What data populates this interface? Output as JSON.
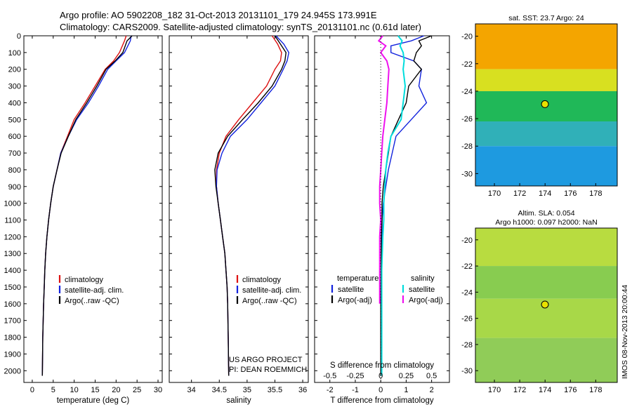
{
  "header": {
    "line1": "Argo profile: AO 5902208_182 31-Oct-2013 20131101_179 24.945S 173.991E",
    "line2": "Climatology: CARS2009. Satellite-adjusted climatology: synTS_20131101.nc (0.61d later)"
  },
  "colors": {
    "climatology": "#dd1111",
    "satellite": "#1122dd",
    "argo": "#000000",
    "salinity_satellite": "#00dddd",
    "salinity_argo": "#ee11ee"
  },
  "chart_data": [
    {
      "id": "temperature",
      "type": "line",
      "xlabel": "temperature (deg C)",
      "ylabel": "",
      "xlim": [
        -2,
        31
      ],
      "ylim": [
        2070,
        0
      ],
      "xticks": [
        "0",
        "5",
        "10",
        "15",
        "20",
        "25",
        "30"
      ],
      "xtick_values": [
        0,
        5,
        10,
        15,
        20,
        25,
        30
      ],
      "yticks": [
        "0",
        "100",
        "200",
        "300",
        "400",
        "500",
        "600",
        "700",
        "800",
        "900",
        "1000",
        "1100",
        "1200",
        "1300",
        "1400",
        "1500",
        "1600",
        "1700",
        "1800",
        "1900",
        "2000"
      ],
      "ytick_values": [
        0,
        100,
        200,
        300,
        400,
        500,
        600,
        700,
        800,
        900,
        1000,
        1100,
        1200,
        1300,
        1400,
        1500,
        1600,
        1700,
        1800,
        1900,
        2000
      ],
      "legend": [
        "climatology",
        "satellite-adj. clim.",
        "Argo(..raw -QC)"
      ],
      "series": [
        {
          "name": "climatology",
          "color_key": "climatology",
          "x": [
            22.4,
            22.0,
            20.8,
            19.4,
            17.4,
            15.0,
            12.6,
            10.0,
            8.4,
            6.8,
            5.9,
            5.0,
            4.4,
            3.9,
            3.5,
            3.2,
            3.0,
            2.85,
            2.7,
            2.6,
            2.5,
            2.4
          ],
          "y": [
            0,
            30,
            100,
            150,
            200,
            300,
            400,
            500,
            600,
            700,
            800,
            900,
            1000,
            1100,
            1200,
            1300,
            1400,
            1500,
            1600,
            1700,
            1800,
            2030
          ]
        },
        {
          "name": "satellite-adj. clim.",
          "color_key": "satellite",
          "x": [
            23.6,
            23.4,
            22.0,
            20.0,
            18.0,
            15.8,
            13.4,
            10.6,
            8.6,
            6.8,
            5.9,
            5.0,
            4.4,
            3.9,
            3.5,
            3.2,
            3.0,
            2.85,
            2.7,
            2.6,
            2.5,
            2.4
          ],
          "y": [
            0,
            30,
            100,
            150,
            200,
            300,
            400,
            500,
            600,
            700,
            800,
            900,
            1000,
            1100,
            1200,
            1300,
            1400,
            1500,
            1600,
            1700,
            1800,
            2030
          ]
        },
        {
          "name": "Argo(..raw -QC)",
          "color_key": "argo",
          "x": [
            23.8,
            22.6,
            21.6,
            19.8,
            17.6,
            15.4,
            13.0,
            10.4,
            8.6,
            6.9,
            5.9,
            5.0,
            4.4,
            3.9,
            3.5,
            3.2,
            3.0,
            2.85,
            2.7,
            2.6,
            2.5,
            2.4
          ],
          "y": [
            0,
            30,
            100,
            150,
            200,
            300,
            400,
            500,
            600,
            700,
            800,
            900,
            1000,
            1100,
            1200,
            1300,
            1400,
            1500,
            1600,
            1700,
            1800,
            2030
          ]
        }
      ]
    },
    {
      "id": "salinity",
      "type": "line",
      "xlabel": "salinity",
      "ylabel": "",
      "xlim": [
        33.6,
        36.1
      ],
      "ylim": [
        2070,
        0
      ],
      "xticks": [
        "34",
        "34.5",
        "35",
        "35.5",
        "36"
      ],
      "xtick_values": [
        34,
        34.5,
        35,
        35.5,
        36
      ],
      "legend": [
        "climatology",
        "satellite-adj. clim.",
        "Argo(..raw -QC)"
      ],
      "annotations": [
        "US ARGO PROJECT",
        "PI: DEAN ROEMMICH"
      ],
      "series": [
        {
          "name": "climatology",
          "color_key": "climatology",
          "x": [
            35.45,
            35.55,
            35.62,
            35.6,
            35.5,
            35.35,
            35.1,
            34.85,
            34.62,
            34.5,
            34.45,
            34.45,
            34.48,
            34.52,
            34.56,
            34.6,
            34.62,
            34.64,
            34.65,
            34.66,
            34.67
          ],
          "y": [
            0,
            50,
            100,
            150,
            200,
            300,
            400,
            500,
            600,
            700,
            800,
            900,
            1000,
            1100,
            1200,
            1300,
            1400,
            1500,
            1600,
            1800,
            2030
          ]
        },
        {
          "name": "satellite-adj. clim.",
          "color_key": "satellite",
          "x": [
            35.52,
            35.66,
            35.75,
            35.72,
            35.65,
            35.5,
            35.25,
            35.0,
            34.7,
            34.55,
            34.46,
            34.45,
            34.48,
            34.52,
            34.56,
            34.6,
            34.62,
            34.64,
            34.65,
            34.66,
            34.67
          ],
          "y": [
            0,
            50,
            100,
            150,
            200,
            300,
            400,
            500,
            600,
            700,
            800,
            900,
            1000,
            1100,
            1200,
            1300,
            1400,
            1500,
            1600,
            1800,
            2030
          ]
        },
        {
          "name": "Argo(..raw -QC)",
          "color_key": "argo",
          "x": [
            35.5,
            35.6,
            35.7,
            35.68,
            35.62,
            35.45,
            35.2,
            34.92,
            34.65,
            34.48,
            34.42,
            34.44,
            34.48,
            34.52,
            34.56,
            34.6,
            34.62,
            34.64,
            34.65,
            34.66,
            34.67
          ],
          "y": [
            0,
            50,
            100,
            150,
            200,
            300,
            400,
            500,
            600,
            700,
            800,
            900,
            1000,
            1100,
            1200,
            1300,
            1400,
            1500,
            1600,
            1800,
            2030
          ]
        }
      ]
    },
    {
      "id": "difference",
      "type": "line",
      "xlabel": "T difference from climatology",
      "top_xlabel": "S difference from climatology",
      "xlim": [
        -2.6,
        2.7
      ],
      "ylim": [
        2070,
        0
      ],
      "xticks": [
        "-2",
        "-1",
        "0",
        "1",
        "2"
      ],
      "xtick_values": [
        -2,
        -1,
        0,
        1,
        2
      ],
      "s_xticks": [
        "-0.5",
        "-0.25",
        "0",
        "0.25",
        "0.5"
      ],
      "s_xtick_values": [
        -0.5,
        -0.25,
        0,
        0.25,
        0.5
      ],
      "legend_headers": [
        "temperature",
        "salinity"
      ],
      "legend_temperature": [
        "satellite",
        "Argo(-adj)"
      ],
      "legend_salinity": [
        "satellite",
        "Argo(-adj)"
      ],
      "series": [
        {
          "name": "temperature satellite",
          "color_key": "satellite",
          "x": [
            1.7,
            1.2,
            0.4,
            0.4,
            1.3,
            1.6,
            1.5,
            1.8,
            1.2,
            0.6,
            0.45,
            0.3,
            0.2,
            0.1,
            0.05,
            0.05,
            0.02,
            0.01,
            0.0,
            0.0
          ],
          "y": [
            0,
            30,
            60,
            100,
            150,
            200,
            300,
            400,
            500,
            600,
            700,
            800,
            900,
            1000,
            1100,
            1200,
            1400,
            1600,
            1800,
            2030
          ]
        },
        {
          "name": "temperature Argo(-adj)",
          "color_key": "argo",
          "x": [
            2.0,
            1.5,
            1.6,
            1.4,
            1.3,
            1.6,
            1.1,
            1.0,
            0.7,
            0.4,
            0.3,
            0.2,
            0.1,
            0.05,
            0.05,
            0.02,
            0.01,
            0.0,
            0.0
          ],
          "y": [
            0,
            30,
            60,
            100,
            150,
            200,
            300,
            400,
            500,
            600,
            700,
            800,
            900,
            1000,
            1100,
            1200,
            1400,
            1600,
            2030
          ]
        },
        {
          "name": "salinity satellite",
          "color_key": "salinity_satellite",
          "x": [
            0.17,
            0.21,
            0.19,
            0.22,
            0.23,
            0.22,
            0.24,
            0.22,
            0.2,
            0.1,
            0.07,
            0.05,
            0.04,
            0.03,
            0.03,
            0.02,
            0.01,
            0.01,
            0.01
          ],
          "y": [
            0,
            30,
            60,
            100,
            150,
            200,
            300,
            400,
            500,
            600,
            700,
            800,
            900,
            1000,
            1100,
            1200,
            1400,
            1600,
            2030
          ]
        },
        {
          "name": "salinity Argo(-adj)",
          "color_key": "salinity_argo",
          "x": [
            0.02,
            -0.02,
            0.05,
            0.0,
            0.06,
            0.08,
            0.07,
            0.06,
            0.04,
            0.02,
            0.01,
            0.0,
            -0.01,
            -0.01,
            0.0,
            -0.01,
            -0.01,
            -0.01
          ],
          "y": [
            0,
            30,
            60,
            100,
            150,
            200,
            300,
            400,
            500,
            600,
            700,
            800,
            900,
            1000,
            1100,
            1200,
            1400,
            1600
          ]
        }
      ]
    },
    {
      "id": "sst-map",
      "type": "heatmap",
      "title": "sat. SST: 23.7 Argo: 24",
      "xlim": [
        168.5,
        179.7
      ],
      "ylim": [
        -30.9,
        -19.1
      ],
      "xticks": [
        "170",
        "172",
        "174",
        "176",
        "178"
      ],
      "xtick_values": [
        170,
        172,
        174,
        176,
        178
      ],
      "yticks": [
        "-20",
        "-22",
        "-24",
        "-26",
        "-28",
        "-30"
      ],
      "ytick_values": [
        -20,
        -22,
        -24,
        -26,
        -28,
        -30
      ],
      "marker": {
        "lon": 173.991,
        "lat": -24.945
      },
      "zones": [
        {
          "lat_top": -19.1,
          "lat_bottom": -22.4,
          "color": "#f4a500"
        },
        {
          "lat_top": -22.4,
          "lat_bottom": -24.0,
          "color": "#d8e020"
        },
        {
          "lat_top": -24.0,
          "lat_bottom": -26.2,
          "color": "#20b858"
        },
        {
          "lat_top": -26.2,
          "lat_bottom": -28.0,
          "color": "#30b0b8"
        },
        {
          "lat_top": -28.0,
          "lat_bottom": -30.9,
          "color": "#1e9ae0"
        }
      ]
    },
    {
      "id": "sla-map",
      "type": "heatmap",
      "title": "Altim. SLA: 0.054",
      "subtitle": "Argo h1000: 0.097 h2000: NaN",
      "xlim": [
        168.5,
        179.7
      ],
      "ylim": [
        -30.9,
        -19.1
      ],
      "xticks": [
        "170",
        "172",
        "174",
        "176",
        "178"
      ],
      "xtick_values": [
        170,
        172,
        174,
        176,
        178
      ],
      "yticks": [
        "-20",
        "-22",
        "-24",
        "-26",
        "-28",
        "-30"
      ],
      "ytick_values": [
        -20,
        -22,
        -24,
        -26,
        -28,
        -30
      ],
      "marker": {
        "lon": 173.991,
        "lat": -24.945
      },
      "zones": [
        {
          "lat_top": -19.1,
          "lat_bottom": -22.0,
          "color": "#b8dc40"
        },
        {
          "lat_top": -22.0,
          "lat_bottom": -24.5,
          "color": "#88cc50"
        },
        {
          "lat_top": -24.5,
          "lat_bottom": -27.5,
          "color": "#a8d848"
        },
        {
          "lat_top": -27.5,
          "lat_bottom": -30.9,
          "color": "#90cc58"
        }
      ]
    }
  ],
  "footer": {
    "credit": "IMOS 08-Nov-2013 20:00:44"
  }
}
